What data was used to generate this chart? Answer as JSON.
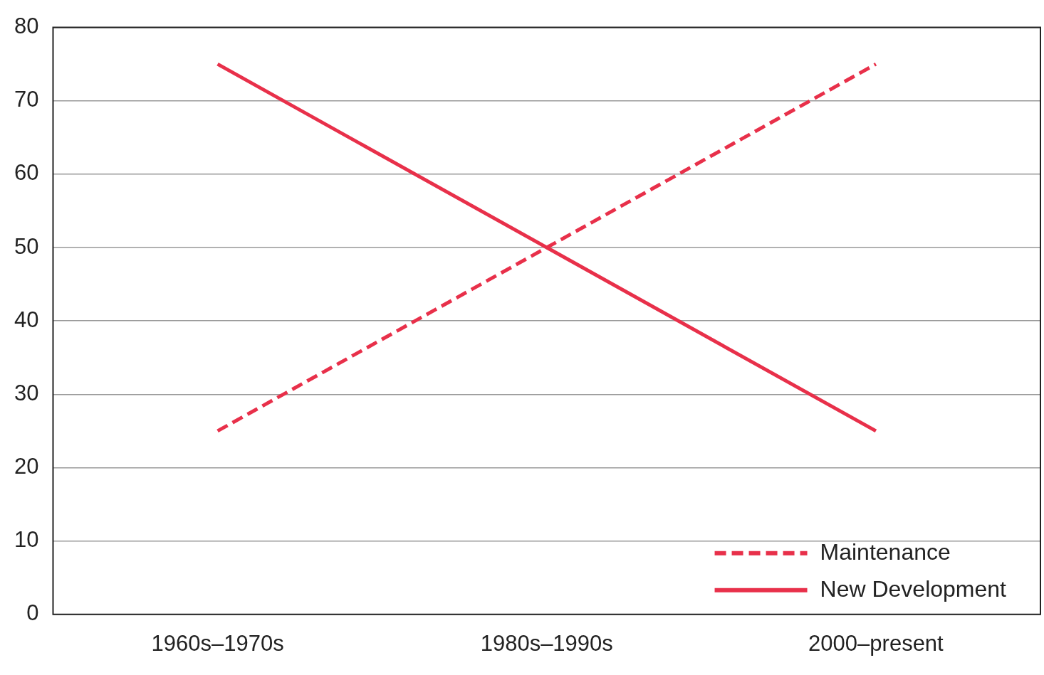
{
  "chart_data": {
    "type": "line",
    "categories": [
      "1960s–1970s",
      "1980s–1990s",
      "2000–present"
    ],
    "series": [
      {
        "name": "Maintenance",
        "color": "#e8304a",
        "values": [
          25,
          50,
          75
        ],
        "line_style": "dashed"
      },
      {
        "name": "New Development",
        "color": "#e8304a",
        "values": [
          75,
          50,
          25
        ],
        "line_style": "solid"
      }
    ],
    "ylim": [
      0,
      80
    ],
    "yticks": [
      0,
      10,
      20,
      30,
      40,
      50,
      60,
      70,
      80
    ],
    "grid": "y",
    "legend": "bottom right",
    "marker": "none"
  }
}
